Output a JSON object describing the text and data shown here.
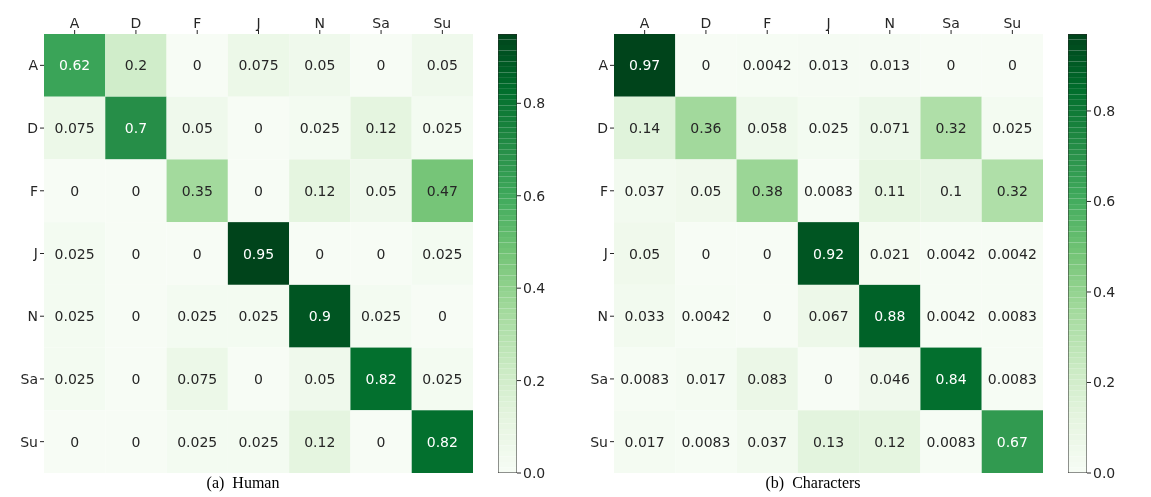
{
  "chart_data": [
    {
      "type": "heatmap",
      "title": "(a)  Human",
      "categories": [
        "A",
        "D",
        "F",
        "J",
        "N",
        "Sa",
        "Su"
      ],
      "y_categories": [
        "A",
        "D",
        "F",
        "J",
        "N",
        "Sa",
        "Su"
      ],
      "cells": [
        [
          0.62,
          0.2,
          0,
          0.075,
          0.05,
          0,
          0.05
        ],
        [
          0.075,
          0.7,
          0.05,
          0,
          0.025,
          0.12,
          0.025
        ],
        [
          0,
          0,
          0.35,
          0,
          0.12,
          0.05,
          0.47
        ],
        [
          0.025,
          0,
          0,
          0.95,
          0,
          0,
          0.025
        ],
        [
          0.025,
          0,
          0.025,
          0.025,
          0.9,
          0.025,
          0
        ],
        [
          0.025,
          0,
          0.075,
          0,
          0.05,
          0.82,
          0.025
        ],
        [
          0,
          0,
          0.025,
          0.025,
          0.12,
          0,
          0.82
        ]
      ],
      "data_labels": true,
      "clim": [
        0,
        0.95
      ],
      "cticks": [
        {
          "value": 0,
          "label": "0.0"
        },
        {
          "value": 0.2,
          "label": "0.2"
        },
        {
          "value": 0.4,
          "label": "0.4"
        },
        {
          "value": 0.6,
          "label": "0.6"
        },
        {
          "value": 0.8,
          "label": "0.8"
        }
      ]
    },
    {
      "type": "heatmap",
      "title": "(b)  Characters",
      "categories": [
        "A",
        "D",
        "F",
        "J",
        "N",
        "Sa",
        "Su"
      ],
      "y_categories": [
        "A",
        "D",
        "F",
        "J",
        "N",
        "Sa",
        "Su"
      ],
      "cells": [
        [
          0.97,
          0,
          0.0042,
          0.013,
          0.013,
          0,
          0
        ],
        [
          0.14,
          0.36,
          0.058,
          0.025,
          0.071,
          0.32,
          0.025
        ],
        [
          0.037,
          0.05,
          0.38,
          0.0083,
          0.11,
          0.1,
          0.32
        ],
        [
          0.05,
          0,
          0,
          0.92,
          0.021,
          0.0042,
          0.0042
        ],
        [
          0.033,
          0.0042,
          0,
          0.067,
          0.88,
          0.0042,
          0.0083
        ],
        [
          0.0083,
          0.017,
          0.083,
          0,
          0.046,
          0.84,
          0.0083
        ],
        [
          0.017,
          0.0083,
          0.037,
          0.13,
          0.12,
          0.0083,
          0.67
        ]
      ],
      "data_labels": true,
      "clim": [
        0,
        0.97
      ],
      "cticks": [
        {
          "value": 0,
          "label": "0.0"
        },
        {
          "value": 0.2,
          "label": "0.2"
        },
        {
          "value": 0.4,
          "label": "0.4"
        },
        {
          "value": 0.6,
          "label": "0.6"
        },
        {
          "value": 0.8,
          "label": "0.8"
        }
      ]
    }
  ]
}
